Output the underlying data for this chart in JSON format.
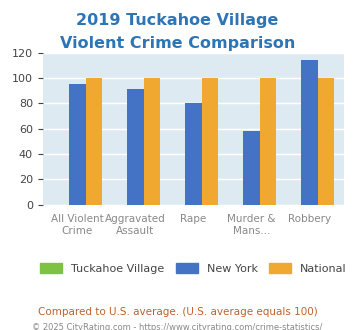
{
  "title_line1": "2019 Tuckahoe Village",
  "title_line2": "Violent Crime Comparison",
  "categories": [
    "All Violent Crime",
    "Aggravated Assault",
    "Rape",
    "Murder & Mans...",
    "Robbery"
  ],
  "series": {
    "Tuckahoe Village": [
      0,
      0,
      0,
      0,
      0
    ],
    "New York": [
      95,
      91,
      80,
      58,
      114
    ],
    "National": [
      100,
      100,
      100,
      100,
      100
    ]
  },
  "colors": {
    "Tuckahoe Village": "#7dc242",
    "New York": "#4472c4",
    "National": "#f0a830"
  },
  "ylim": [
    0,
    120
  ],
  "yticks": [
    0,
    20,
    40,
    60,
    80,
    100,
    120
  ],
  "background_color": "#deeaf1",
  "plot_area_bg": "#deeaf1",
  "title_color": "#2e75b6",
  "subtitle": "Compared to U.S. average. (U.S. average equals 100)",
  "subtitle_color": "#c0622a",
  "footer": "© 2025 CityRating.com - https://www.cityrating.com/crime-statistics/",
  "footer_color": "#888888",
  "grid_color": "#ffffff",
  "bar_width": 0.28
}
